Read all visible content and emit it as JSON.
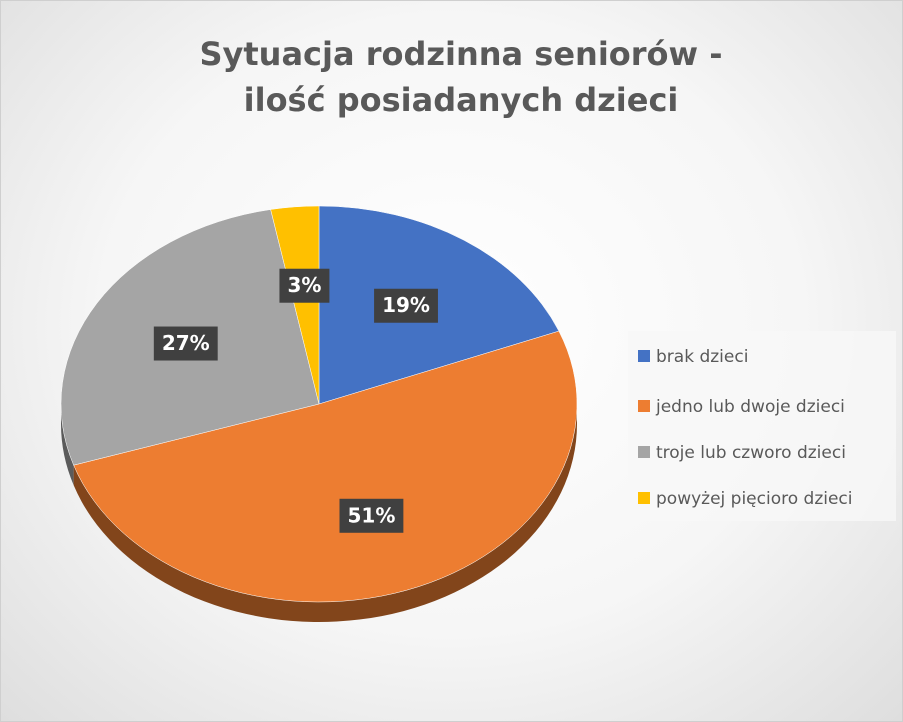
{
  "chart_data": {
    "type": "pie",
    "title": "Sytuacja rodzinna seniorów - ilość posiadanych dzieci",
    "categories": [
      "brak dzieci",
      "jedno lub dwoje dzieci",
      "troje lub czworo dzieci",
      "powyżej pięcioro dzieci"
    ],
    "values": [
      19,
      51,
      27,
      3
    ],
    "value_labels": [
      "19%",
      "51%",
      "27%",
      "3%"
    ],
    "colors": [
      "#4472c4",
      "#ed7d31",
      "#a5a5a5",
      "#ffc000"
    ],
    "legend": "right"
  }
}
